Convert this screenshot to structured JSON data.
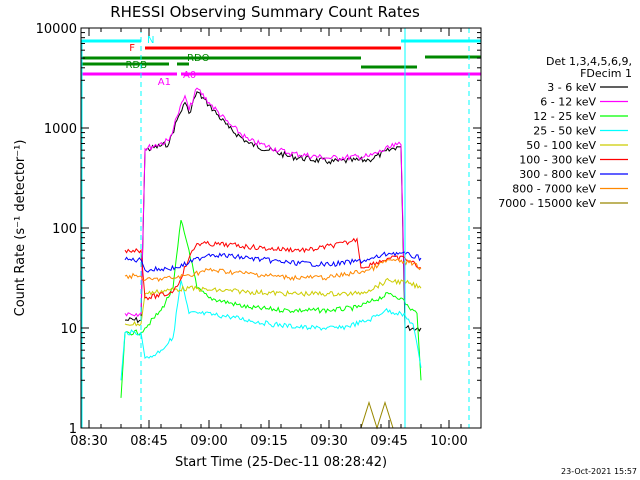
{
  "title": "RHESSI Observing Summary Count Rates",
  "stamp": "23-Oct-2021 15:57",
  "chart_data": {
    "type": "line",
    "title": "RHESSI Observing Summary Count Rates",
    "xlabel": "Start Time (25-Dec-11 08:28:42)",
    "ylabel": "Count Rate (s⁻¹ detector⁻¹)",
    "x_scale": "time",
    "y_scale": "log",
    "xlim": [
      "08:28",
      "10:08"
    ],
    "ylim": [
      1,
      10000
    ],
    "x_ticks": [
      "08:30",
      "08:45",
      "09:00",
      "09:15",
      "09:30",
      "09:45",
      "10:00"
    ],
    "y_ticks": [
      "1",
      "10",
      "100",
      "1000",
      "10000"
    ],
    "legend_header": [
      "Det 1,3,4,5,6,9,",
      "FDecim 1"
    ],
    "legend_position": "right",
    "series": [
      {
        "name": "3 - 6 keV",
        "color": "#000000",
        "x": [
          "08:39",
          "08:43",
          "08:44",
          "08:50",
          "08:52",
          "08:54",
          "08:55",
          "08:57",
          "09:00",
          "09:05",
          "09:10",
          "09:20",
          "09:30",
          "09:40",
          "09:47",
          "09:48",
          "09:49",
          "09:53"
        ],
        "y": [
          12,
          12,
          600,
          700,
          1200,
          1800,
          1400,
          2300,
          1700,
          1000,
          700,
          520,
          460,
          480,
          650,
          650,
          10,
          10
        ]
      },
      {
        "name": "6 - 12 keV",
        "color": "#ff00ff",
        "x": [
          "08:39",
          "08:43",
          "08:44",
          "08:50",
          "08:52",
          "08:54",
          "08:55",
          "08:57",
          "09:00",
          "09:05",
          "09:10",
          "09:20",
          "09:30",
          "09:40",
          "09:47",
          "09:48",
          "09:49"
        ],
        "y": [
          14,
          14,
          620,
          750,
          1300,
          2100,
          1500,
          2500,
          1800,
          1100,
          750,
          560,
          500,
          520,
          680,
          680,
          15
        ]
      },
      {
        "name": "12 - 25 keV",
        "color": "#00ff00",
        "x": [
          "08:38",
          "08:39",
          "08:43",
          "08:44",
          "08:48",
          "08:51",
          "08:53",
          "08:55",
          "08:57",
          "09:00",
          "09:10",
          "09:20",
          "09:30",
          "09:37",
          "09:40",
          "09:45",
          "09:48",
          "09:50",
          "09:52",
          "09:53"
        ],
        "y": [
          2,
          9,
          9,
          10,
          15,
          25,
          120,
          60,
          25,
          20,
          16,
          15,
          15,
          16,
          18,
          22,
          20,
          16,
          14,
          3
        ]
      },
      {
        "name": "25 - 50 keV",
        "color": "#00ffff",
        "x": [
          "08:38",
          "08:39",
          "08:43",
          "08:44",
          "08:45",
          "08:48",
          "08:51",
          "08:53",
          "08:55",
          "08:58",
          "09:05",
          "09:15",
          "09:25",
          "09:33",
          "09:40",
          "09:44",
          "09:48",
          "09:51",
          "09:53"
        ],
        "y": [
          3,
          9,
          9,
          5,
          5,
          6,
          8,
          30,
          14,
          14,
          13,
          11,
          10,
          10,
          12,
          15,
          14,
          11,
          4
        ]
      },
      {
        "name": "50 - 100 keV",
        "color": "#cccc00",
        "x": [
          "08:39",
          "08:43",
          "08:44",
          "08:50",
          "08:55",
          "09:00",
          "09:10",
          "09:20",
          "09:30",
          "09:37",
          "09:40",
          "09:45",
          "09:50",
          "09:53"
        ],
        "y": [
          11,
          11,
          22,
          24,
          25,
          24,
          23,
          22,
          22,
          22,
          24,
          30,
          28,
          25
        ]
      },
      {
        "name": "100 - 300 keV",
        "color": "#ff0000",
        "x": [
          "08:39",
          "08:43",
          "08:44",
          "08:50",
          "08:52",
          "08:55",
          "08:57",
          "09:05",
          "09:15",
          "09:25",
          "09:35",
          "09:37",
          "09:38",
          "09:45",
          "09:49",
          "09:53"
        ],
        "y": [
          60,
          60,
          20,
          22,
          26,
          50,
          70,
          68,
          62,
          60,
          72,
          78,
          40,
          50,
          50,
          40
        ]
      },
      {
        "name": "300 - 800 keV",
        "color": "#0000ff",
        "x": [
          "08:39",
          "08:43",
          "08:44",
          "08:52",
          "08:55",
          "09:00",
          "09:10",
          "09:20",
          "09:30",
          "09:40",
          "09:45",
          "09:48",
          "09:53"
        ],
        "y": [
          48,
          48,
          38,
          40,
          45,
          55,
          50,
          45,
          43,
          48,
          56,
          56,
          50
        ]
      },
      {
        "name": "800 - 7000 keV",
        "color": "#ff8800",
        "x": [
          "08:39",
          "08:43",
          "08:44",
          "08:52",
          "08:55",
          "09:00",
          "09:10",
          "09:20",
          "09:30",
          "09:40",
          "09:45",
          "09:50",
          "09:53"
        ],
        "y": [
          33,
          33,
          30,
          32,
          34,
          38,
          35,
          32,
          32,
          38,
          48,
          45,
          40
        ]
      },
      {
        "name": "7000 - 15000 keV",
        "color": "#998800",
        "x": [
          "09:38",
          "09:40",
          "09:42",
          "09:44",
          "09:46"
        ],
        "y": [
          1,
          1.8,
          1,
          1.8,
          1
        ]
      }
    ],
    "bars": [
      {
        "label": "N",
        "color": "#00ffff",
        "rows": [
          [
            [
              "08:28",
              "08:43"
            ],
            [
              "09:48",
              "10:08"
            ]
          ]
        ]
      },
      {
        "label": "F",
        "color": "#ff0000",
        "rows": [
          [
            [
              "08:44",
              "09:48"
            ]
          ]
        ]
      },
      {
        "label": "RDO",
        "color": "#008800",
        "rows": [
          [
            [
              "08:28",
              "09:38"
            ]
          ],
          [
            [
              "09:54",
              "10:08"
            ]
          ]
        ]
      },
      {
        "label": "RDB",
        "color": "#008800",
        "rows": [
          [
            [
              "08:28",
              "08:50"
            ],
            [
              "08:52",
              "08:55"
            ]
          ],
          [
            [
              "09:38",
              "09:52"
            ]
          ]
        ]
      },
      {
        "label": "A1",
        "color": "#ff00ff",
        "rows": [
          [
            [
              "08:28",
              "08:52"
            ]
          ]
        ]
      },
      {
        "label": "A0",
        "color": "#ff00ff",
        "rows": [
          [
            [
              "08:53",
              "10:08"
            ]
          ]
        ]
      }
    ],
    "vertical_lines": [
      {
        "x": "08:43",
        "color": "#00ffff",
        "style": "dashed"
      },
      {
        "x": "09:49",
        "color": "#00ffff",
        "style": "solid"
      },
      {
        "x": "10:05",
        "color": "#00ffff",
        "style": "dashed"
      }
    ]
  }
}
